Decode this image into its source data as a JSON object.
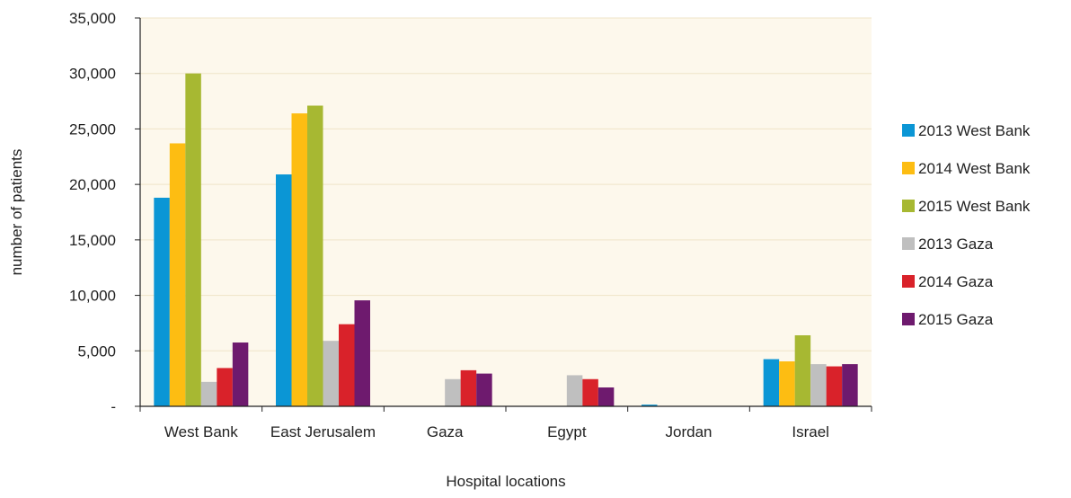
{
  "chart_data": {
    "type": "bar",
    "title": "",
    "xlabel": "Hospital locations",
    "ylabel": "number of patients",
    "categories": [
      "West Bank",
      "East Jerusalem",
      "Gaza",
      "Egypt",
      "Jordan",
      "Israel"
    ],
    "ylim": [
      0,
      35000
    ],
    "yticks": [
      0,
      5000,
      10000,
      15000,
      20000,
      25000,
      30000,
      35000
    ],
    "ytick_labels": [
      "-",
      "5,000",
      "10,000",
      "15,000",
      "20,000",
      "25,000",
      "30,000",
      "35,000"
    ],
    "grid": true,
    "legend_position": "right",
    "plot_background": "#fdf8ec",
    "series": [
      {
        "name": "2013 West Bank",
        "color": "#0b96d5",
        "values": [
          18800,
          20900,
          0,
          0,
          150,
          4250
        ]
      },
      {
        "name": "2014 West Bank",
        "color": "#fdbd12",
        "values": [
          23700,
          26400,
          0,
          0,
          0,
          4050
        ]
      },
      {
        "name": "2015 West Bank",
        "color": "#a7b832",
        "values": [
          30000,
          27100,
          0,
          0,
          0,
          6400
        ]
      },
      {
        "name": "2013 Gaza",
        "color": "#bfbfbf",
        "values": [
          2200,
          5900,
          2450,
          2800,
          0,
          3800
        ]
      },
      {
        "name": "2014 Gaza",
        "color": "#d9222a",
        "values": [
          3450,
          7400,
          3250,
          2450,
          0,
          3600
        ]
      },
      {
        "name": "2015 Gaza",
        "color": "#6e1a6e",
        "values": [
          5750,
          9550,
          2950,
          1700,
          0,
          3800
        ]
      }
    ]
  }
}
